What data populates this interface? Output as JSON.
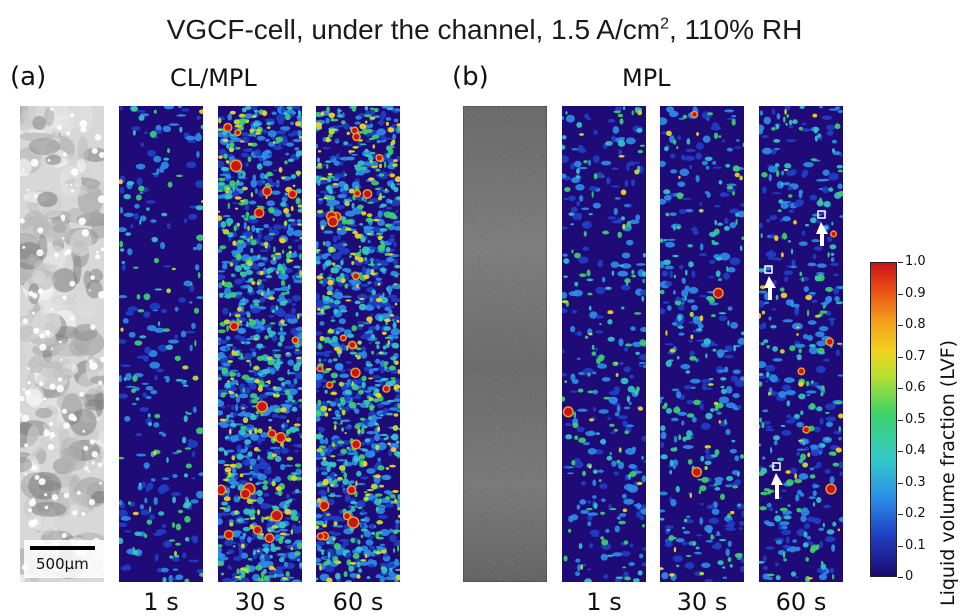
{
  "figure": {
    "title": "VGCF-cell, under the channel, 1.5 A/cm",
    "title_sup": "2",
    "title_suffix": ", 110% RH"
  },
  "panel_a": {
    "label": "(a)",
    "heading": "CL/MPL",
    "scale_bar_text": "500µm",
    "times": [
      "1 s",
      "30 s",
      "60 s"
    ]
  },
  "panel_b": {
    "label": "(b)",
    "heading": "MPL",
    "times": [
      "1 s",
      "30 s",
      "60 s"
    ]
  },
  "colorbar": {
    "label": "Liquid volume fraction (LVF)",
    "ticks": [
      "1.0",
      "0.9",
      "0.8",
      "0.7",
      "0.6",
      "0.5",
      "0.4",
      "0.3",
      "0.2",
      "0.1",
      "0"
    ],
    "colors": [
      "#1a0a6e",
      "#1f3fc4",
      "#2b8fe8",
      "#33c9c9",
      "#3ed46a",
      "#b8e030",
      "#f2d21e",
      "#f39a1a",
      "#e84a14",
      "#c8141a"
    ]
  }
}
